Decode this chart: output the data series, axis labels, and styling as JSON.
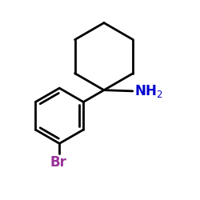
{
  "background_color": "#ffffff",
  "line_color": "#000000",
  "nh2_color": "#0000cd",
  "br_color": "#993399",
  "line_width": 2.0,
  "font_size_nh2": 12,
  "font_size_br": 12
}
